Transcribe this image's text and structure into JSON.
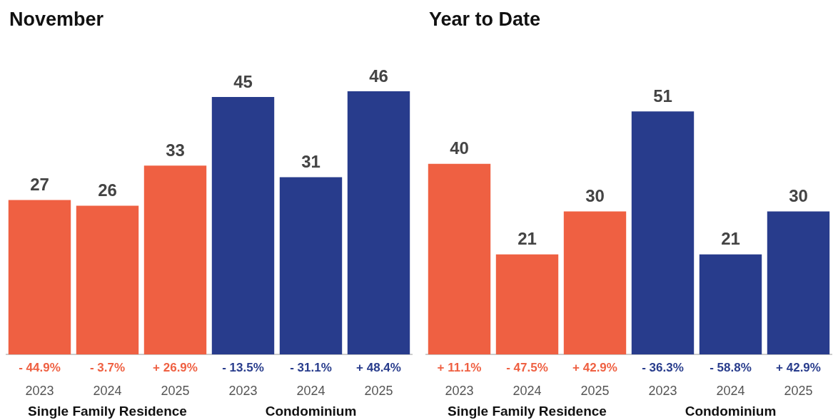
{
  "chart_data": [
    {
      "type": "bar",
      "title": "November",
      "categories": [
        "2023",
        "2024",
        "2025",
        "2023",
        "2024",
        "2025"
      ],
      "series": [
        {
          "color": "#ef6042",
          "values": [
            27,
            26,
            33,
            null,
            null,
            null
          ]
        },
        {
          "color": "#283c8c",
          "values": [
            null,
            null,
            null,
            45,
            31,
            46
          ]
        }
      ],
      "data_labels": true,
      "grid": false,
      "annotations": [
        "- 44.9%",
        "- 3.7%",
        "+ 26.9%",
        "- 13.5%",
        "- 31.1%",
        "+ 48.4%",
        "Single Family Residence",
        "Condominium"
      ]
    },
    {
      "type": "bar",
      "title": "Year to Date",
      "categories": [
        "2023",
        "2024",
        "2025",
        "2023",
        "2024",
        "2025"
      ],
      "series": [
        {
          "color": "#ef6042",
          "values": [
            40,
            21,
            30,
            null,
            null,
            null
          ]
        },
        {
          "color": "#283c8c",
          "values": [
            null,
            null,
            null,
            51,
            21,
            30
          ]
        }
      ],
      "data_labels": true,
      "grid": false,
      "annotations": [
        "+ 11.1%",
        "- 47.5%",
        "+ 42.9%",
        "- 36.3%",
        "- 58.8%",
        "+ 42.9%",
        "Single Family Residence",
        "Condominium"
      ]
    }
  ]
}
